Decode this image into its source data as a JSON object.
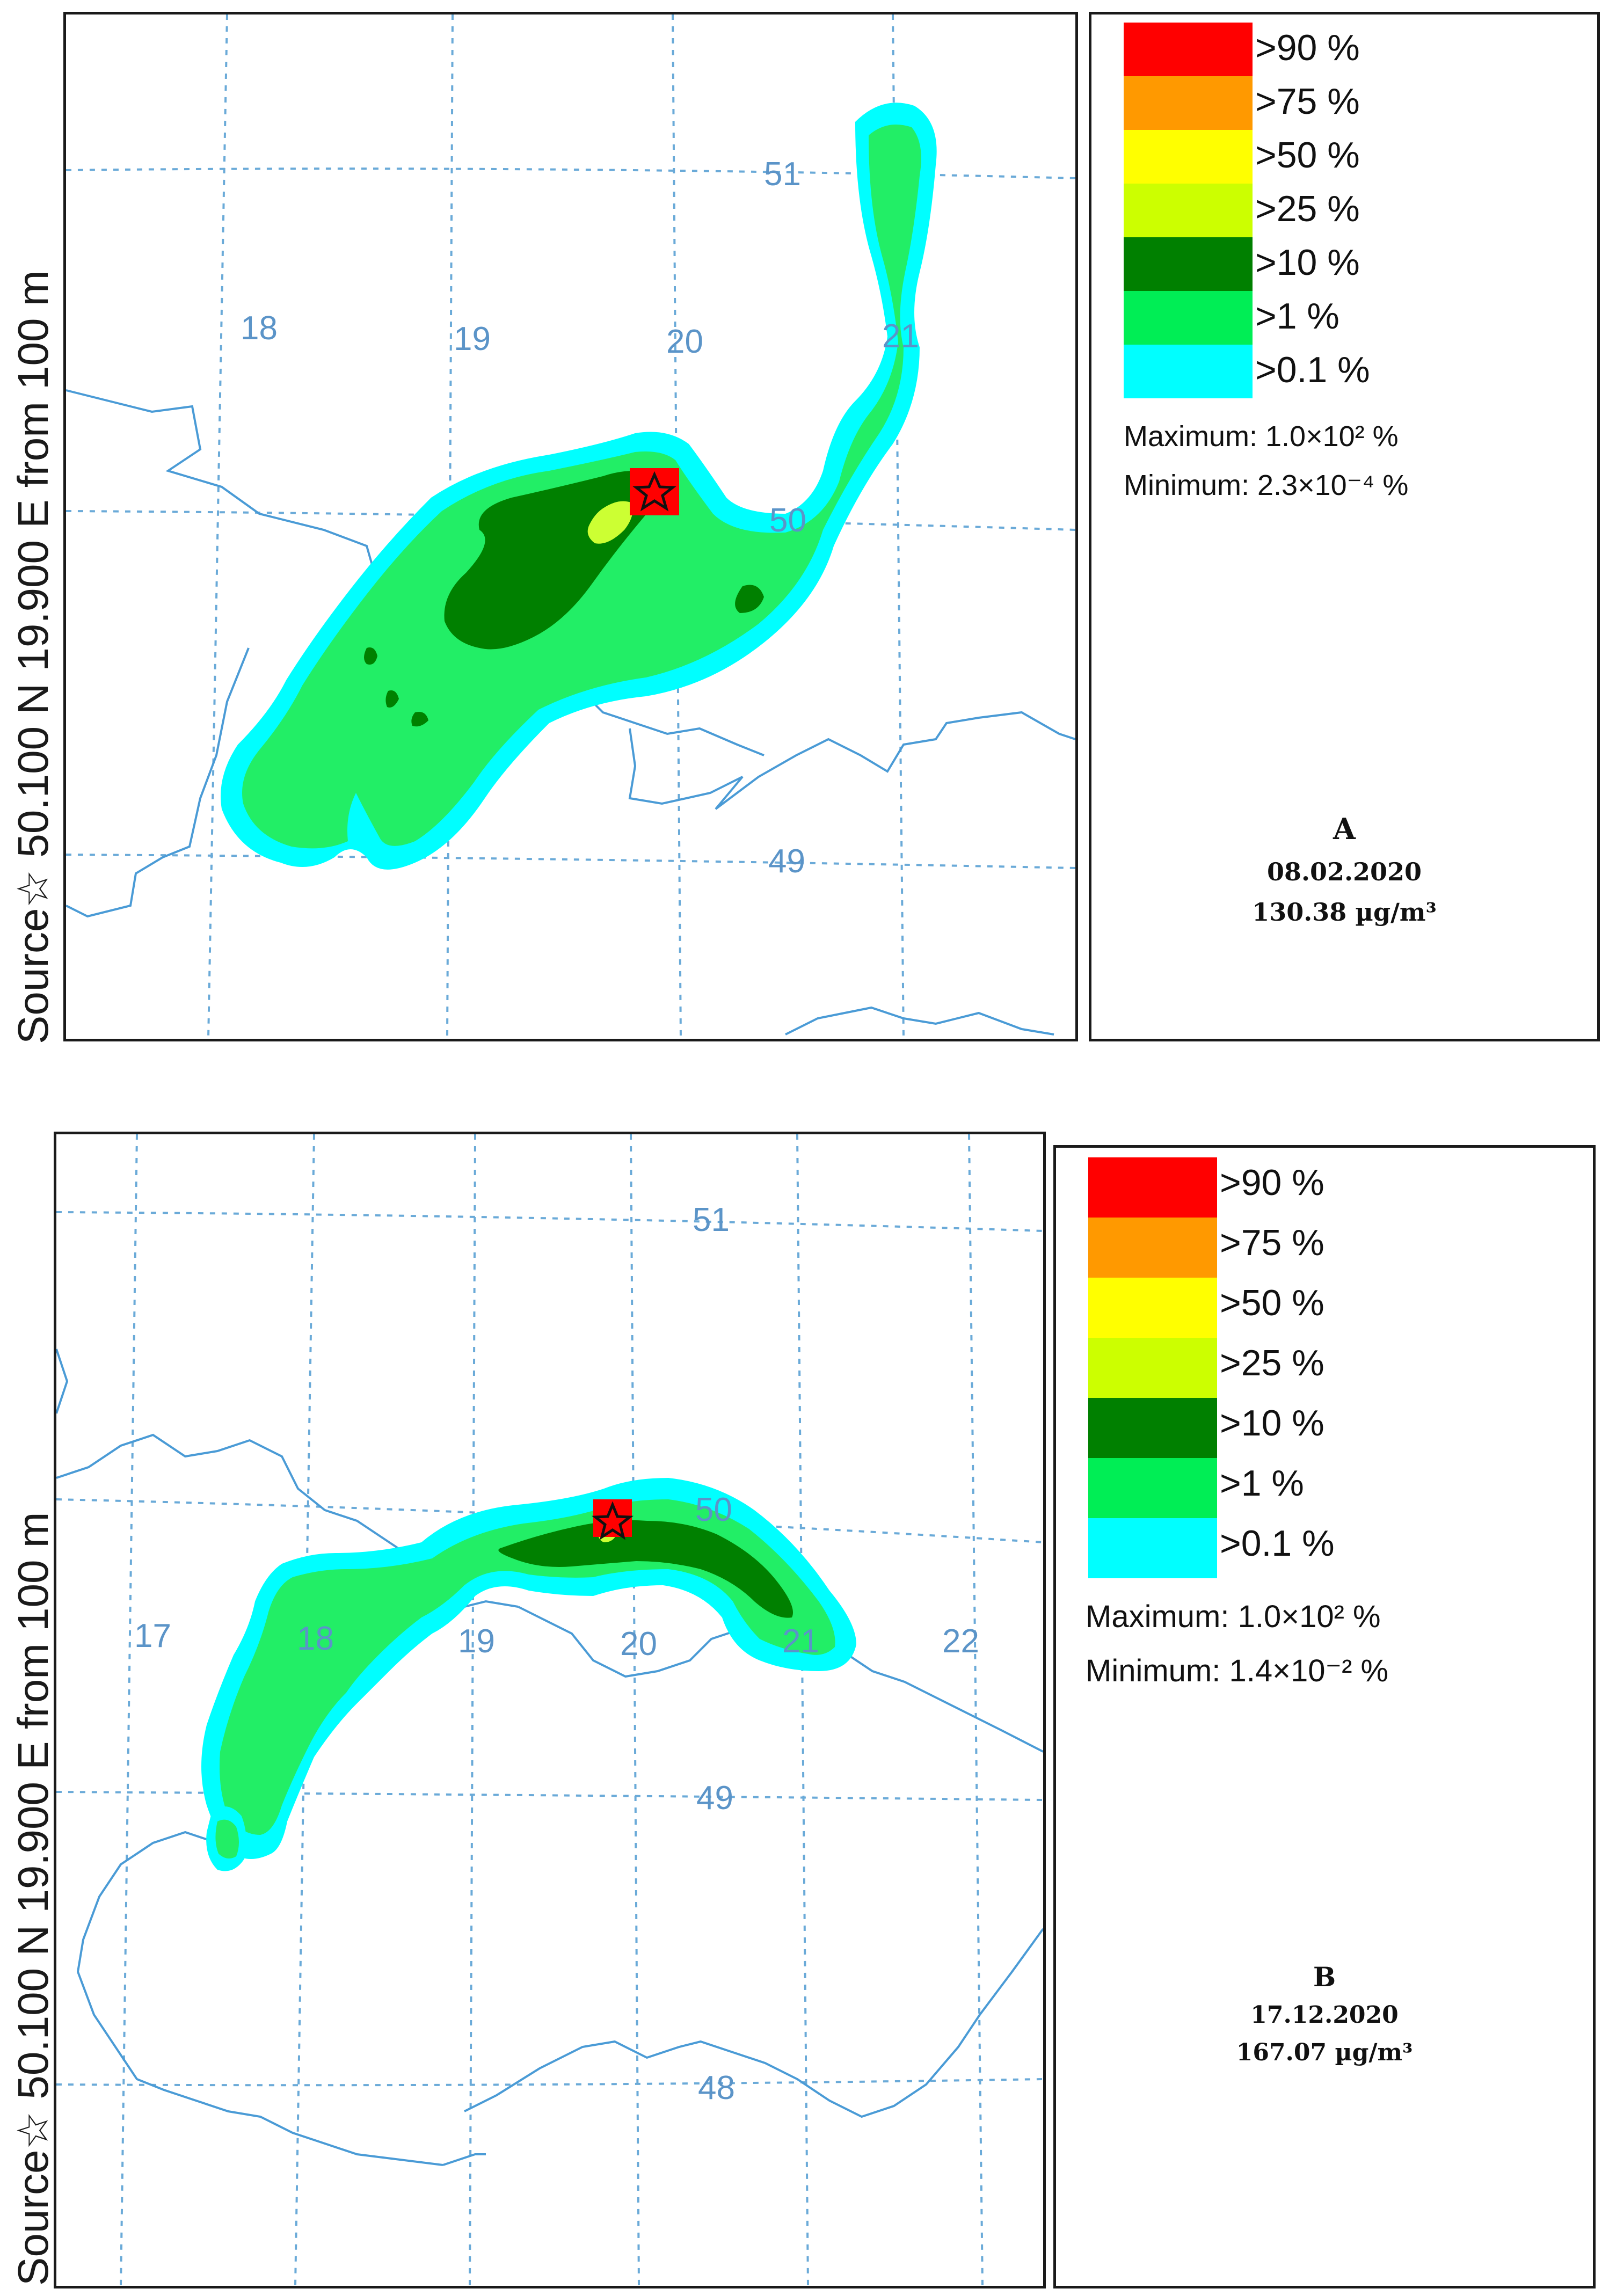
{
  "panels": [
    {
      "id": "A",
      "source_label": "Source☆ 50.100 N 19.900 E from 100 m",
      "lon_labels": [
        "18",
        "19",
        "20",
        "21"
      ],
      "lat_labels": [
        "51",
        "50",
        "49"
      ],
      "legend": [
        {
          "label": ">90  %",
          "color": "#ff0000"
        },
        {
          "label": ">75  %",
          "color": "#ff9900"
        },
        {
          "label": ">50  %",
          "color": "#ffff00"
        },
        {
          "label": ">25  %",
          "color": "#ccff00"
        },
        {
          "label": ">10  %",
          "color": "#008000"
        },
        {
          "label": ">1  %",
          "color": "#00ee55"
        },
        {
          "label": ">0.1  %",
          "color": "#00ffff"
        }
      ],
      "maximum": "Maximum:  1.0×10²     %",
      "minimum": "Minimum:  2.3×10⁻⁴  %",
      "caption_letter": "A",
      "caption_date": "08.02.2020",
      "caption_value": "130.38 µg/m³"
    },
    {
      "id": "B",
      "source_label": "Source☆ 50.100 N 19.900 E from 100 m",
      "lon_labels": [
        "17",
        "18",
        "19",
        "20",
        "21",
        "22"
      ],
      "lat_labels": [
        "51",
        "50",
        "49",
        "48"
      ],
      "legend": [
        {
          "label": ">90  %",
          "color": "#ff0000"
        },
        {
          "label": ">75  %",
          "color": "#ff9900"
        },
        {
          "label": ">50  %",
          "color": "#ffff00"
        },
        {
          "label": ">25  %",
          "color": "#ccff00"
        },
        {
          "label": ">10  %",
          "color": "#008000"
        },
        {
          "label": ">1  %",
          "color": "#00ee55"
        },
        {
          "label": ">0.1  %",
          "color": "#00ffff"
        }
      ],
      "maximum": "Maximum:  1.0×10² %",
      "minimum": "Minimum: 1.4×10⁻² %",
      "caption_letter": "B",
      "caption_date": "17.12.2020",
      "caption_value": "167.07 µg/m³"
    }
  ],
  "colors": {
    "grid": "#6aaad8",
    "border": "#4a9bd6",
    "grid_label": "#5b94c8",
    "frame": "#1a1a1a"
  }
}
